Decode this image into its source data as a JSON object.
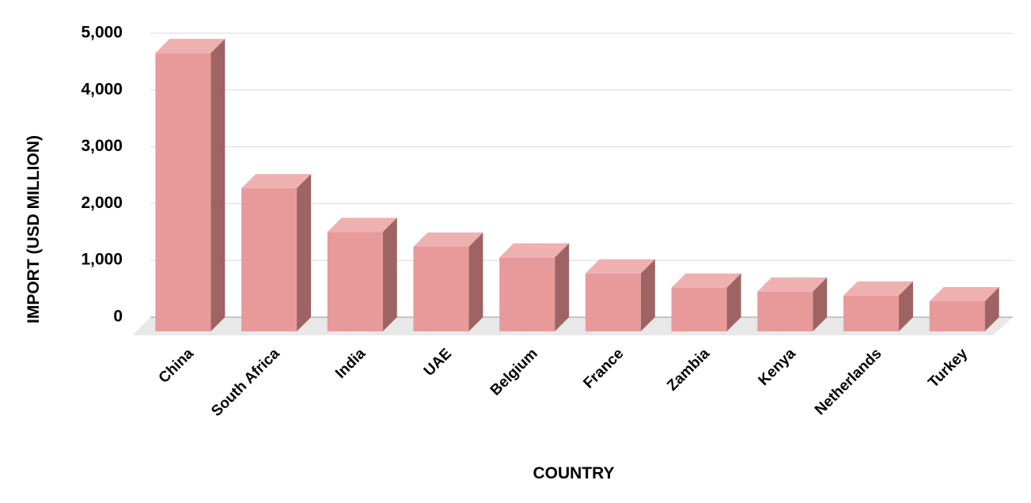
{
  "chart_data": {
    "type": "bar3d",
    "x_label": "COUNTRY",
    "y_label": "IMPORT (USD MILLION)",
    "categories": [
      "China",
      "South Africa",
      "India",
      "UAE",
      "Belgium",
      "France",
      "Zambia",
      "Kenya",
      "Netherlands",
      "Turkey"
    ],
    "values": [
      4900,
      2520,
      1750,
      1490,
      1300,
      1020,
      770,
      700,
      630,
      530
    ],
    "color": "#e89a9a",
    "ylim": [
      0,
      5000
    ],
    "yticks": [
      0,
      {
        "value": 1000,
        "label": "1,000"
      },
      {
        "value": 2000,
        "label": "2,000"
      },
      {
        "value": 3000,
        "label": "3,000"
      },
      {
        "value": 4000,
        "label": "4,000"
      },
      {
        "value": 5000,
        "label": "5,000"
      }
    ],
    "grid": true
  }
}
